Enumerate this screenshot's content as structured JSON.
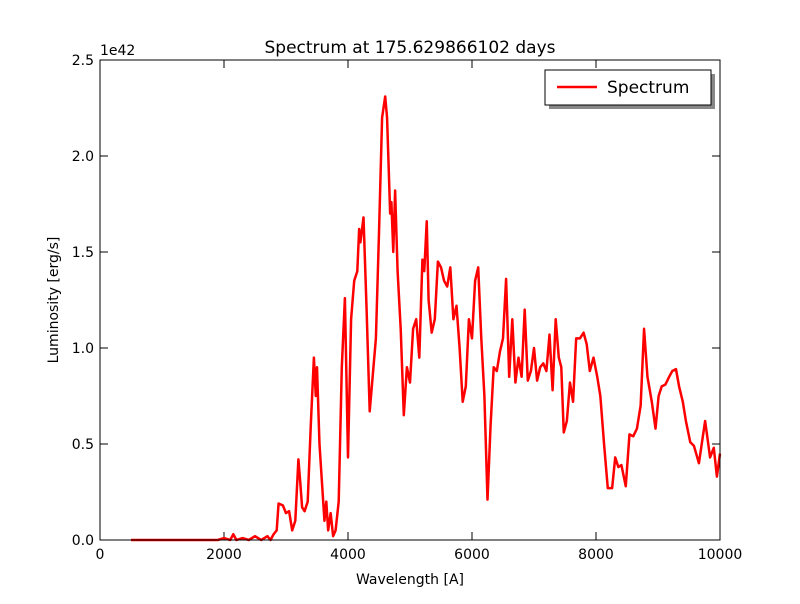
{
  "chart_data": {
    "type": "line",
    "title": "Spectrum at 175.629866102 days",
    "xlabel": "Wavelength [A]",
    "ylabel": "Luminosity [erg/s]",
    "y_offset_label": "1e42",
    "xlim": [
      0,
      10000
    ],
    "ylim": [
      0,
      2.5
    ],
    "xticks": [
      0,
      2000,
      4000,
      6000,
      8000,
      10000
    ],
    "yticks": [
      {
        "value": 0,
        "label": "0.0"
      },
      0.5,
      {
        "value": 1,
        "label": "1.0"
      },
      1.5,
      {
        "value": 2,
        "label": "2.0"
      },
      2.5
    ],
    "legend": "upper right",
    "x": [
      500,
      1000,
      1500,
      1900,
      2000,
      2100,
      2150,
      2200,
      2300,
      2400,
      2500,
      2600,
      2700,
      2750,
      2800,
      2850,
      2880,
      2950,
      3000,
      3050,
      3100,
      3150,
      3200,
      3230,
      3260,
      3300,
      3350,
      3400,
      3450,
      3480,
      3500,
      3540,
      3580,
      3620,
      3650,
      3680,
      3720,
      3760,
      3800,
      3850,
      3900,
      3950,
      4000,
      4050,
      4100,
      4150,
      4180,
      4200,
      4250,
      4300,
      4350,
      4450,
      4500,
      4550,
      4600,
      4630,
      4680,
      4700,
      4730,
      4760,
      4800,
      4850,
      4900,
      4950,
      5000,
      5050,
      5100,
      5150,
      5200,
      5230,
      5270,
      5300,
      5350,
      5400,
      5450,
      5500,
      5550,
      5600,
      5650,
      5700,
      5750,
      5800,
      5850,
      5900,
      5950,
      6000,
      6050,
      6100,
      6150,
      6200,
      6250,
      6300,
      6350,
      6400,
      6450,
      6500,
      6550,
      6600,
      6650,
      6700,
      6750,
      6800,
      6850,
      6900,
      6950,
      7000,
      7050,
      7100,
      7150,
      7200,
      7250,
      7300,
      7350,
      7400,
      7440,
      7480,
      7530,
      7580,
      7630,
      7680,
      7740,
      7800,
      7850,
      7900,
      7960,
      8020,
      8070,
      8130,
      8190,
      8260,
      8310,
      8360,
      8410,
      8480,
      8540,
      8600,
      8660,
      8720,
      8775,
      8830,
      8900,
      8960,
      9010,
      9060,
      9120,
      9180,
      9230,
      9290,
      9340,
      9400,
      9450,
      9520,
      9580,
      9660,
      9760,
      9840,
      9900,
      9950,
      10000
    ],
    "series": [
      {
        "name": "Spectrum",
        "color": "#ff0000",
        "values": [
          0,
          0,
          0,
          0,
          0.01,
          0,
          0.03,
          0,
          0.01,
          0,
          0.02,
          0,
          0.02,
          0,
          0.03,
          0.05,
          0.19,
          0.18,
          0.14,
          0.15,
          0.05,
          0.1,
          0.42,
          0.3,
          0.17,
          0.15,
          0.2,
          0.6,
          0.95,
          0.75,
          0.9,
          0.5,
          0.3,
          0.1,
          0.2,
          0.05,
          0.14,
          0.02,
          0.05,
          0.2,
          0.9,
          1.26,
          0.43,
          1.15,
          1.35,
          1.4,
          1.62,
          1.55,
          1.68,
          1.2,
          0.67,
          1.05,
          1.6,
          2.2,
          2.31,
          2.2,
          1.7,
          1.76,
          1.5,
          1.82,
          1.4,
          1.1,
          0.65,
          0.9,
          0.82,
          1.1,
          1.15,
          0.95,
          1.46,
          1.4,
          1.66,
          1.25,
          1.08,
          1.15,
          1.45,
          1.42,
          1.35,
          1.32,
          1.42,
          1.15,
          1.22,
          1.0,
          0.72,
          0.8,
          1.15,
          1.05,
          1.35,
          1.42,
          1.05,
          0.75,
          0.21,
          0.6,
          0.9,
          0.88,
          0.98,
          1.05,
          1.36,
          0.85,
          1.15,
          0.82,
          0.95,
          0.85,
          1.2,
          0.83,
          0.88,
          1.0,
          0.83,
          0.9,
          0.92,
          0.88,
          1.07,
          0.78,
          1.15,
          0.95,
          0.9,
          0.56,
          0.62,
          0.82,
          0.72,
          1.05,
          1.05,
          1.08,
          1.02,
          0.88,
          0.95,
          0.85,
          0.75,
          0.5,
          0.27,
          0.27,
          0.43,
          0.38,
          0.39,
          0.28,
          0.55,
          0.54,
          0.58,
          0.7,
          1.1,
          0.85,
          0.72,
          0.58,
          0.75,
          0.8,
          0.81,
          0.85,
          0.88,
          0.89,
          0.8,
          0.72,
          0.62,
          0.51,
          0.49,
          0.4,
          0.62,
          0.43,
          0.48,
          0.33,
          0.45
        ]
      }
    ]
  }
}
